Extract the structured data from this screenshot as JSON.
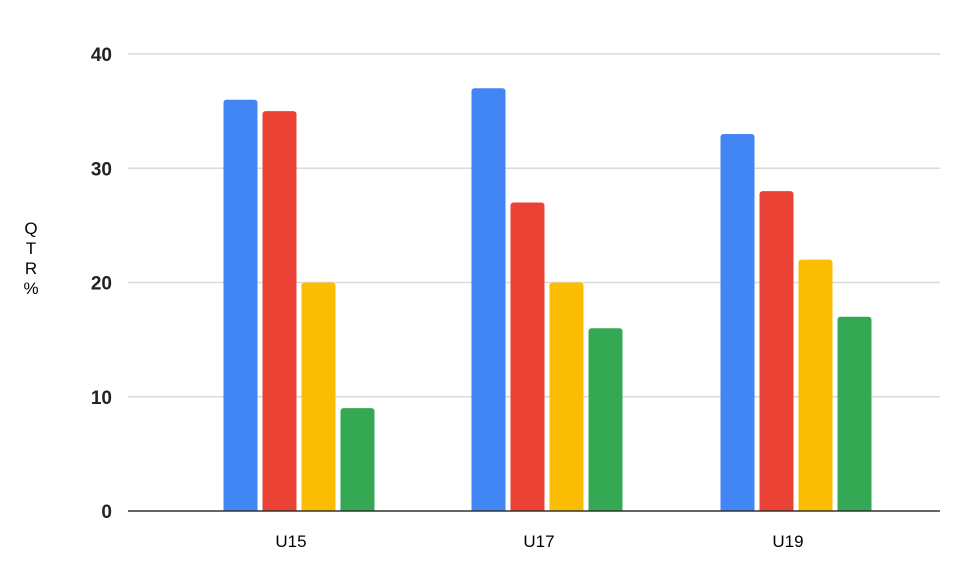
{
  "chart_data": {
    "type": "bar",
    "title": "",
    "xlabel": "",
    "ylabel": "QTR%",
    "categories": [
      "U15",
      "U17",
      "U19"
    ],
    "series": [
      {
        "color": "#4285F4",
        "values": [
          36,
          37,
          33
        ]
      },
      {
        "color": "#EA4335",
        "values": [
          35,
          27,
          28
        ]
      },
      {
        "color": "#FBBC04",
        "values": [
          20,
          20,
          22
        ]
      },
      {
        "color": "#34A853",
        "values": [
          9,
          16,
          17
        ]
      }
    ],
    "ylim": [
      0,
      40
    ],
    "yticks": [
      0,
      10,
      20,
      30,
      40
    ],
    "grid": true,
    "legend": "none"
  }
}
